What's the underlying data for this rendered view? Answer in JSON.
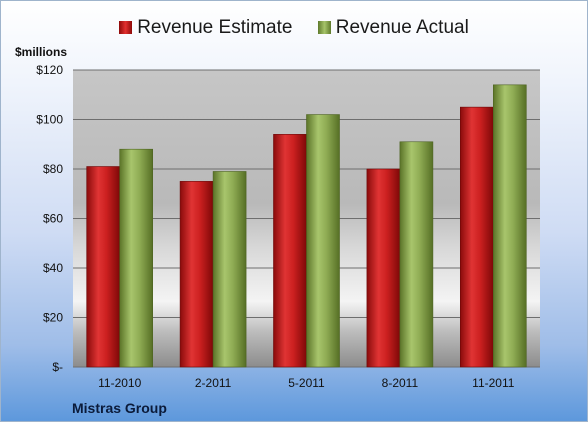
{
  "chart_data": {
    "type": "bar",
    "categories": [
      "11-2010",
      "2-2011",
      "5-2011",
      "8-2011",
      "11-2011"
    ],
    "series": [
      {
        "name": "Revenue Estimate",
        "values": [
          81,
          75,
          94,
          80,
          105
        ],
        "color": "#d42a2a"
      },
      {
        "name": "Revenue Actual",
        "values": [
          88,
          79,
          102,
          91,
          114
        ],
        "color": "#8fac54"
      }
    ],
    "ylabel": "$millions",
    "ylim": [
      0,
      120
    ],
    "yticks": [
      0,
      20,
      40,
      60,
      80,
      100,
      120
    ],
    "ytick_labels": [
      "$-",
      "$20",
      "$40",
      "$60",
      "$80",
      "$100",
      "$120"
    ],
    "legend_position": "top",
    "grid": true,
    "caption": "Mistras Group"
  },
  "legend": {
    "estimate": "Revenue Estimate",
    "actual": "Revenue Actual"
  },
  "axis": {
    "unit_label": "$millions"
  },
  "footer": {
    "company": "Mistras Group"
  }
}
